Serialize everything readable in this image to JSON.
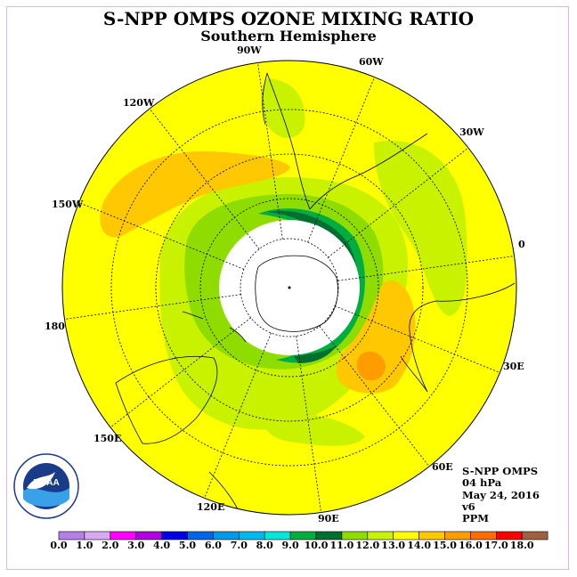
{
  "title": "S-NPP OMPS OZONE MIXING RATIO",
  "subtitle": "Southern Hemisphere",
  "longitude_labels": [
    "0",
    "30E",
    "60E",
    "90E",
    "120E",
    "150E",
    "180",
    "150W",
    "120W",
    "90W",
    "60W",
    "30W"
  ],
  "info": {
    "instrument": "S-NPP OMPS",
    "level": "04 hPa",
    "date": "May 24, 2016",
    "version": "v6",
    "units": "PPM"
  },
  "logo_text": "NOAA",
  "colorbar": {
    "ticks": [
      "0.0",
      "1.0",
      "2.0",
      "3.0",
      "4.0",
      "5.0",
      "6.0",
      "7.0",
      "8.0",
      "9.0",
      "10.0",
      "11.0",
      "12.0",
      "13.0",
      "14.0",
      "15.0",
      "16.0",
      "17.0",
      "18.0"
    ],
    "colors": [
      "#b57fe8",
      "#d9a8f2",
      "#ff00ff",
      "#b000e0",
      "#0000e6",
      "#0066e6",
      "#0099e6",
      "#00b8f0",
      "#00e6d8",
      "#00ad40",
      "#006f30",
      "#8fdc00",
      "#c8f200",
      "#ffff00",
      "#ffc800",
      "#ff9d00",
      "#ff6c00",
      "#ff0000",
      "#a06040"
    ]
  },
  "colors": {
    "background": "#ffff00",
    "green_light": "#c8f200",
    "green_mid": "#8fdc00",
    "green_dark": "#00ad40",
    "green_darkest": "#006f30",
    "orange": "#ffc800",
    "orange_dark": "#ff9d00"
  }
}
